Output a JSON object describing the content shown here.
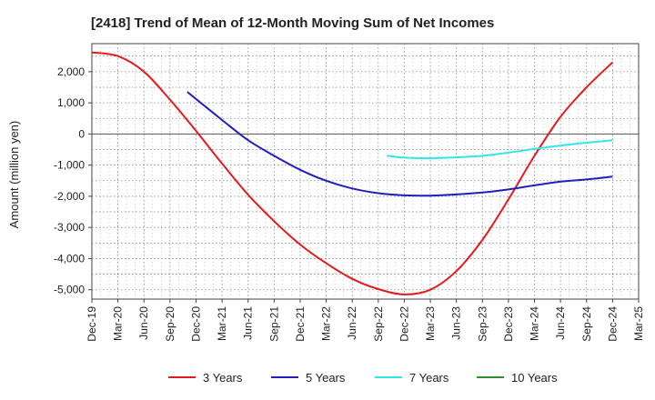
{
  "chart_data": {
    "type": "line",
    "title": "[2418]  Trend of Mean of 12-Month Moving Sum of Net Incomes",
    "ylabel": "Amount (million yen)",
    "xlabel": "",
    "ylim": [
      -5300,
      2900
    ],
    "yticks": [
      2000,
      1000,
      0,
      -1000,
      -2000,
      -3000,
      -4000,
      -5000
    ],
    "ytick_labels": [
      "2,000",
      "1,000",
      "0",
      "-1,000",
      "-2,000",
      "-3,000",
      "-4,000",
      "-5,000"
    ],
    "xticks": [
      "Dec-19",
      "Mar-20",
      "Jun-20",
      "Sep-20",
      "Dec-20",
      "Mar-21",
      "Jun-21",
      "Sep-21",
      "Dec-21",
      "Mar-22",
      "Jun-22",
      "Sep-22",
      "Dec-22",
      "Mar-23",
      "Jun-23",
      "Sep-23",
      "Dec-23",
      "Mar-24",
      "Jun-24",
      "Sep-24",
      "Dec-24",
      "Mar-25"
    ],
    "grid": true,
    "legend_position": "bottom",
    "series": [
      {
        "name": "3 Years",
        "color": "#e41a1c",
        "x": [
          "2019-12",
          "2020-03",
          "2020-06",
          "2020-09",
          "2020-12",
          "2021-03",
          "2021-06",
          "2021-09",
          "2021-12",
          "2022-03",
          "2022-06",
          "2022-09",
          "2022-12",
          "2023-03",
          "2023-06",
          "2023-09",
          "2023-12",
          "2024-03",
          "2024-06",
          "2024-09",
          "2024-12"
        ],
        "values": [
          2620,
          2500,
          2000,
          1100,
          100,
          -950,
          -1950,
          -2800,
          -3550,
          -4150,
          -4650,
          -4980,
          -5150,
          -5000,
          -4400,
          -3400,
          -2100,
          -700,
          550,
          1500,
          2300
        ]
      },
      {
        "name": "5 Years",
        "color": "#1f1fbf",
        "x": [
          "2020-11",
          "2021-03",
          "2021-06",
          "2021-09",
          "2021-12",
          "2022-03",
          "2022-06",
          "2022-09",
          "2022-12",
          "2023-03",
          "2023-06",
          "2023-09",
          "2023-12",
          "2024-03",
          "2024-06",
          "2024-09",
          "2024-12"
        ],
        "values": [
          1350,
          450,
          -200,
          -700,
          -1150,
          -1500,
          -1750,
          -1900,
          -1970,
          -1980,
          -1940,
          -1880,
          -1780,
          -1650,
          -1530,
          -1460,
          -1370
        ]
      },
      {
        "name": "7 Years",
        "color": "#33e6e6",
        "x": [
          "2022-10",
          "2022-12",
          "2023-03",
          "2023-06",
          "2023-09",
          "2023-12",
          "2024-03",
          "2024-06",
          "2024-09",
          "2024-12"
        ],
        "values": [
          -700,
          -760,
          -780,
          -750,
          -700,
          -600,
          -480,
          -370,
          -280,
          -200
        ]
      },
      {
        "name": "10 Years",
        "color": "#2e8b2e",
        "x": [],
        "values": []
      }
    ]
  }
}
